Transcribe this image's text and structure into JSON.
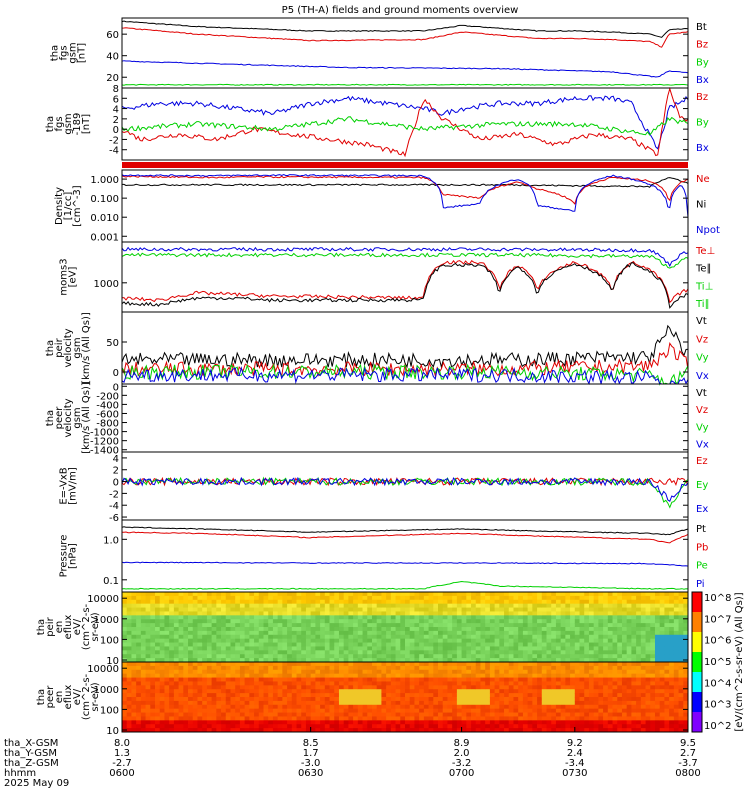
{
  "title": "P5 (TH-A) fields and ground moments overview",
  "colors": {
    "black": "#000000",
    "red": "#e00000",
    "green": "#00d000",
    "blue": "#0000e0"
  },
  "chart_data": [
    {
      "id": "fgs_gsm_mag",
      "type": "line",
      "ylabel": [
        "tha",
        "fgs",
        "gsm",
        "[nT]"
      ],
      "ylim": [
        10,
        75
      ],
      "yticks": [
        "20",
        "40",
        "60"
      ],
      "ytick_values": [
        20,
        40,
        60
      ],
      "legend": [
        {
          "name": "Bt",
          "color": "red_black"
        },
        {
          "name": "Bz",
          "color": "red"
        },
        {
          "name": "By",
          "color": "green"
        },
        {
          "name": "Bx",
          "color": "blue"
        }
      ],
      "series": [
        {
          "name": "Bt",
          "color": "black",
          "x": [
            8.0,
            8.2,
            8.5,
            8.8,
            8.9,
            9.1,
            9.2,
            9.3,
            9.4,
            9.43,
            9.45,
            9.5
          ],
          "values": [
            72,
            67,
            63,
            63,
            68,
            63,
            63,
            62,
            60,
            57,
            64,
            65
          ]
        },
        {
          "name": "Bz",
          "color": "red",
          "x": [
            8.0,
            8.2,
            8.5,
            8.8,
            8.9,
            9.1,
            9.2,
            9.3,
            9.4,
            9.43,
            9.45,
            9.5
          ],
          "values": [
            66,
            60,
            54,
            55,
            62,
            56,
            56,
            55,
            53,
            48,
            60,
            62
          ]
        },
        {
          "name": "By",
          "color": "green",
          "x": [
            8.0,
            8.5,
            9.0,
            9.5
          ],
          "values": [
            13,
            13,
            13,
            13
          ]
        },
        {
          "name": "Bx",
          "color": "blue",
          "x": [
            8.0,
            8.3,
            8.6,
            9.0,
            9.3,
            9.42,
            9.45,
            9.5
          ],
          "values": [
            35,
            32,
            29,
            28,
            25,
            20,
            26,
            24
          ]
        }
      ]
    },
    {
      "id": "fgs_gsm_189",
      "type": "line",
      "ylabel": [
        "tha",
        "fgs",
        "gsm",
        "-189",
        "[nT]"
      ],
      "ylim": [
        -6,
        8
      ],
      "yticks": [
        "8",
        "6",
        "4",
        "2",
        "0",
        "-2",
        "-4"
      ],
      "ytick_values": [
        8,
        6,
        4,
        2,
        0,
        -2,
        -4
      ],
      "legend": [
        {
          "name": "Bz",
          "color": "red"
        },
        {
          "name": "By",
          "color": "green"
        },
        {
          "name": "Bx",
          "color": "blue"
        }
      ],
      "series": [
        {
          "name": "Bx",
          "color": "blue",
          "x": [
            8.0,
            8.1,
            8.2,
            8.3,
            8.4,
            8.5,
            8.6,
            8.7,
            8.8,
            8.85,
            8.9,
            9.0,
            9.1,
            9.2,
            9.3,
            9.35,
            9.42,
            9.45,
            9.5
          ],
          "values": [
            4,
            5,
            5,
            4,
            3,
            5,
            6,
            5,
            4,
            3,
            4,
            5,
            5,
            6,
            6,
            5,
            -4,
            4,
            6
          ]
        },
        {
          "name": "Bz",
          "color": "red",
          "x": [
            8.0,
            8.05,
            8.15,
            8.25,
            8.35,
            8.45,
            8.55,
            8.65,
            8.75,
            8.8,
            8.85,
            8.95,
            9.05,
            9.15,
            9.25,
            9.35,
            9.42,
            9.45,
            9.48,
            9.5
          ],
          "values": [
            0,
            -2,
            -1,
            -2,
            0,
            -1,
            -2,
            -3,
            -5,
            6,
            2,
            -2,
            -1,
            -3,
            -1,
            -2,
            -5,
            8,
            2,
            2
          ]
        },
        {
          "name": "By",
          "color": "green",
          "x": [
            8.0,
            8.2,
            8.4,
            8.6,
            8.8,
            9.0,
            9.2,
            9.4,
            9.45,
            9.5
          ],
          "values": [
            0,
            1,
            0,
            2,
            0,
            1,
            1,
            -1,
            2,
            1
          ]
        }
      ]
    },
    {
      "id": "density",
      "type": "line",
      "yscale": "log",
      "ylabel": [
        "Density",
        "[1/cc]",
        "[cm^-3]"
      ],
      "ylim": [
        0.0005,
        3
      ],
      "yticks": [
        "1.000",
        "0.100",
        "0.010",
        "0.001"
      ],
      "ytick_values": [
        1,
        0.1,
        0.01,
        0.001
      ],
      "legend": [
        {
          "name": "Ne",
          "color": "red"
        },
        {
          "name": "Ni",
          "color": "black"
        },
        {
          "name": "Npot",
          "color": "blue"
        }
      ],
      "series": [
        {
          "name": "Ni",
          "color": "black",
          "x": [
            8.0,
            8.5,
            9.0,
            9.4,
            9.45,
            9.5
          ],
          "values": [
            0.5,
            0.5,
            0.5,
            0.4,
            1.2,
            0.6
          ]
        },
        {
          "name": "Ne",
          "color": "red",
          "x": [
            8.0,
            8.25,
            8.35,
            8.8,
            8.85,
            8.95,
            9.05,
            9.1,
            9.2,
            9.3,
            9.4,
            9.45,
            9.5
          ],
          "values": [
            1.4,
            1.2,
            1.3,
            1.2,
            0.15,
            0.1,
            0.7,
            0.3,
            0.05,
            1.2,
            0.8,
            0.05,
            1.0
          ]
        },
        {
          "name": "Npot",
          "color": "blue",
          "x": [
            8.0,
            8.25,
            8.35,
            8.8,
            8.85,
            8.95,
            9.05,
            9.1,
            9.2,
            9.3,
            9.4,
            9.45,
            9.48,
            9.5
          ],
          "values": [
            1.6,
            1.5,
            1.6,
            1.5,
            0.03,
            0.05,
            1.0,
            0.04,
            0.02,
            1.5,
            0.5,
            0.0007,
            0.5,
            0.01
          ]
        }
      ]
    },
    {
      "id": "moms_t",
      "type": "line",
      "yscale": "log",
      "ylabel": [
        "moms3",
        "[eV]"
      ],
      "ylim": [
        100,
        25000
      ],
      "yticks": [
        "1000"
      ],
      "ytick_values": [
        1000
      ],
      "legend": [
        {
          "name": "Te⊥",
          "color": "red"
        },
        {
          "name": "Te∥",
          "color": "black"
        },
        {
          "name": "Ti⊥",
          "color": "green"
        },
        {
          "name": "Ti∥",
          "color": "green"
        }
      ],
      "series": [
        {
          "name": "Ti⊥",
          "color": "blue",
          "x": [
            8.0,
            8.5,
            9.0,
            9.4,
            9.45,
            9.5
          ],
          "values": [
            14000,
            14000,
            14000,
            13000,
            4000,
            12000
          ]
        },
        {
          "name": "Ti∥",
          "color": "green",
          "x": [
            8.0,
            8.5,
            9.0,
            9.4,
            9.45,
            9.5
          ],
          "values": [
            9000,
            9000,
            9000,
            8000,
            3000,
            7000
          ]
        },
        {
          "name": "Te⊥",
          "color": "red",
          "x": [
            8.0,
            8.1,
            8.2,
            8.3,
            8.4,
            8.8,
            8.85,
            8.95,
            9.0,
            9.05,
            9.1,
            9.2,
            9.3,
            9.35,
            9.45,
            9.5
          ],
          "values": [
            300,
            250,
            450,
            400,
            350,
            300,
            5000,
            5000,
            500,
            4000,
            500,
            5000,
            500,
            5000,
            200,
            600
          ]
        },
        {
          "name": "Te∥",
          "color": "black",
          "x": [
            8.0,
            8.1,
            8.2,
            8.3,
            8.4,
            8.8,
            8.85,
            8.95,
            9.0,
            9.05,
            9.1,
            9.2,
            9.3,
            9.35,
            9.45,
            9.5
          ],
          "values": [
            200,
            180,
            300,
            300,
            250,
            260,
            4000,
            4000,
            350,
            3500,
            400,
            4500,
            400,
            4500,
            150,
            400
          ]
        }
      ]
    },
    {
      "id": "peir_velocity",
      "type": "line",
      "ylabel": [
        "tha",
        "peir",
        "velocity",
        "gsm",
        "[km/s (All Qs)]"
      ],
      "ylim": [
        -20,
        100
      ],
      "yticks": [
        "50",
        "0"
      ],
      "ytick_values": [
        50,
        0
      ],
      "legend": [
        {
          "name": "Vt",
          "color": "black"
        },
        {
          "name": "Vz",
          "color": "red"
        },
        {
          "name": "Vy",
          "color": "green"
        },
        {
          "name": "Vx",
          "color": "blue"
        }
      ],
      "series": [
        {
          "name": "Vt",
          "color": "black",
          "x": [
            8.0,
            8.5,
            9.0,
            9.4,
            9.45,
            9.5
          ],
          "values": [
            20,
            20,
            20,
            25,
            70,
            30
          ]
        },
        {
          "name": "Vz",
          "color": "red",
          "x": [
            8.0,
            8.5,
            9.0,
            9.4,
            9.45,
            9.5
          ],
          "values": [
            5,
            5,
            5,
            10,
            40,
            10
          ]
        },
        {
          "name": "Vy",
          "color": "green",
          "x": [
            8.0,
            8.5,
            9.0,
            9.4,
            9.45,
            9.5
          ],
          "values": [
            0,
            0,
            0,
            -5,
            -20,
            0
          ]
        },
        {
          "name": "Vx",
          "color": "blue",
          "x": [
            8.0,
            8.5,
            9.0,
            9.4,
            9.45,
            9.5
          ],
          "values": [
            -5,
            -5,
            -5,
            -10,
            -30,
            -5
          ]
        }
      ]
    },
    {
      "id": "peer_velocity",
      "type": "line",
      "ylabel": [
        "tha",
        "peer",
        "velocity",
        "gsm",
        "[km/s (All Qs)]"
      ],
      "ylim": [
        -1450,
        50
      ],
      "yticks": [
        "0",
        "-200",
        "-400",
        "-600",
        "-800",
        "-1000",
        "-1200",
        "-1400"
      ],
      "ytick_values": [
        0,
        -200,
        -400,
        -600,
        -800,
        -1000,
        -1200,
        -1400
      ],
      "legend": [
        {
          "name": "Vt",
          "color": "black"
        },
        {
          "name": "Vz",
          "color": "red"
        },
        {
          "name": "Vy",
          "color": "green"
        },
        {
          "name": "Vx",
          "color": "blue"
        }
      ],
      "series": []
    },
    {
      "id": "efield",
      "type": "line",
      "ylabel": [
        "E=-VxB",
        "[mV/m]"
      ],
      "ylim": [
        -6.5,
        5
      ],
      "yticks": [
        "4",
        "2",
        "0",
        "-2",
        "-4",
        "-6"
      ],
      "ytick_values": [
        4,
        2,
        0,
        -2,
        -4,
        -6
      ],
      "legend": [
        {
          "name": "Ez",
          "color": "red"
        },
        {
          "name": "Ey",
          "color": "green"
        },
        {
          "name": "Ex",
          "color": "blue"
        }
      ],
      "series": [
        {
          "name": "Ez",
          "color": "red",
          "x": [
            8.0,
            8.5,
            9.0,
            9.5
          ],
          "values": [
            0,
            0,
            0,
            0
          ]
        },
        {
          "name": "Ey",
          "color": "green",
          "x": [
            8.0,
            8.5,
            9.0,
            9.4,
            9.45,
            9.5
          ],
          "values": [
            0,
            0,
            0,
            0,
            -4,
            0
          ]
        },
        {
          "name": "Ex",
          "color": "blue",
          "x": [
            8.0,
            8.5,
            9.0,
            9.4,
            9.45,
            9.5
          ],
          "values": [
            0,
            0,
            0,
            0,
            -3,
            0
          ]
        }
      ]
    },
    {
      "id": "pressure",
      "type": "line",
      "yscale": "log",
      "ylabel": [
        "Pressure",
        "[nPa]"
      ],
      "ylim": [
        0.05,
        3
      ],
      "yticks": [
        "1.0",
        "0.1"
      ],
      "ytick_values": [
        1,
        0.1
      ],
      "legend": [
        {
          "name": "Pt",
          "color": "black"
        },
        {
          "name": "Pb",
          "color": "red"
        },
        {
          "name": "Pe",
          "color": "green"
        },
        {
          "name": "Pi",
          "color": "blue"
        }
      ],
      "series": [
        {
          "name": "Pt",
          "color": "black",
          "x": [
            8.0,
            8.2,
            8.5,
            8.9,
            9.1,
            9.4,
            9.45,
            9.5
          ],
          "values": [
            2.0,
            1.8,
            1.5,
            1.8,
            1.6,
            1.4,
            1.3,
            1.8
          ]
        },
        {
          "name": "Pb",
          "color": "red",
          "x": [
            8.0,
            8.2,
            8.5,
            8.9,
            9.1,
            9.4,
            9.45,
            9.5
          ],
          "values": [
            1.5,
            1.4,
            1.1,
            1.4,
            1.2,
            1.0,
            0.8,
            1.3
          ]
        },
        {
          "name": "Pi",
          "color": "blue",
          "x": [
            8.0,
            8.5,
            9.0,
            9.4,
            9.5
          ],
          "values": [
            0.27,
            0.26,
            0.26,
            0.25,
            0.22
          ]
        },
        {
          "name": "Pe",
          "color": "green",
          "x": [
            8.0,
            8.5,
            8.8,
            8.9,
            9.0,
            9.4,
            9.5
          ],
          "values": [
            0.06,
            0.06,
            0.06,
            0.09,
            0.07,
            0.06,
            0.06
          ]
        }
      ]
    },
    {
      "id": "peir_spec",
      "type": "heatmap",
      "yscale": "log",
      "ylabel": [
        "tha",
        "peir",
        "en",
        "eflux",
        "eV/",
        "(cm^2-s-",
        "sr-eV)"
      ],
      "ylim": [
        8,
        20000
      ],
      "yticks": [
        "10000",
        "1000",
        "100",
        "10"
      ],
      "ytick_values": [
        10000,
        1000,
        100,
        10
      ],
      "colorbar_label": "[eV/(cm^2-s-sr-eV) (All Qs)]",
      "colorbar_ticks": [
        "10^8",
        "10^7",
        "10^6",
        "10^5",
        "10^4",
        "10^3",
        "10^2"
      ]
    },
    {
      "id": "peer_spec",
      "type": "heatmap",
      "yscale": "log",
      "ylabel": [
        "tha",
        "peer",
        "en",
        "eflux",
        "eV/",
        "(cm^2-s-",
        "sr-eV)"
      ],
      "ylim": [
        8,
        20000
      ],
      "yticks": [
        "10000",
        "1000",
        "100",
        "10"
      ],
      "ytick_values": [
        10000,
        1000,
        100,
        10
      ],
      "colorbar_ticks": [
        "10^8",
        "10^7",
        "10^6",
        "10^5",
        "10^4",
        "10^3",
        "10^2"
      ]
    }
  ],
  "xaxis": {
    "row_labels": [
      "tha_X-GSM",
      "tha_Y-GSM",
      "tha_Z-GSM",
      "hhmm",
      "2025 May 09"
    ],
    "ticks": [
      {
        "x": 8.0,
        "values": [
          "8.0",
          "1.3",
          "-2.7",
          "0600"
        ]
      },
      {
        "x": 8.5,
        "values": [
          "8.5",
          "1.7",
          "-3.0",
          "0630"
        ]
      },
      {
        "x": 8.9,
        "values": [
          "8.9",
          "2.0",
          "-3.2",
          "0700"
        ]
      },
      {
        "x": 9.2,
        "values": [
          "9.2",
          "2.4",
          "-3.4",
          "0730"
        ]
      },
      {
        "x": 9.5,
        "values": [
          "9.5",
          "2.7",
          "-3.7",
          "0800"
        ]
      }
    ]
  }
}
